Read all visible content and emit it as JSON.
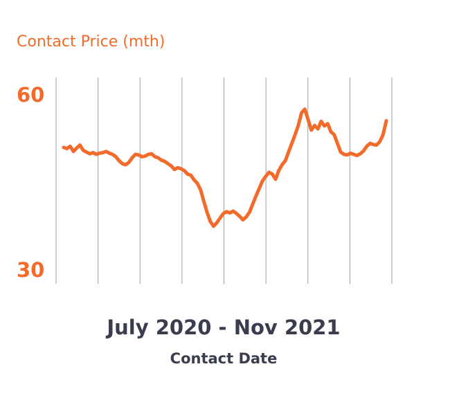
{
  "colors": {
    "accent": "#f26b2a",
    "text_dark": "#3a3d4d",
    "grid": "#9aa0a6"
  },
  "chart_data": {
    "type": "line",
    "title": "Contact Price (mth)",
    "xlabel": "Contact Date",
    "x_range_label": "July 2020 - Nov 2021",
    "ylabel": "",
    "ylim": [
      30,
      60
    ],
    "yticks": [
      30,
      60
    ],
    "grid": "vertical",
    "grid_count": 9,
    "series": [
      {
        "color": "#f26b2a",
        "values": [
          50.8,
          50.6,
          51.0,
          50.1,
          50.7,
          51.2,
          50.3,
          50.0,
          49.7,
          49.9,
          49.6,
          49.8,
          49.9,
          50.1,
          49.8,
          49.6,
          49.2,
          48.5,
          48.0,
          47.8,
          48.2,
          49.0,
          49.6,
          49.5,
          49.2,
          49.3,
          49.6,
          49.7,
          49.2,
          49.0,
          48.6,
          48.4,
          48.0,
          47.6,
          47.0,
          47.3,
          47.1,
          46.8,
          46.2,
          46.0,
          45.2,
          44.6,
          43.5,
          41.5,
          39.6,
          38.0,
          37.2,
          37.8,
          38.6,
          39.4,
          39.7,
          39.5,
          39.8,
          39.4,
          38.9,
          38.3,
          38.8,
          39.6,
          41.0,
          42.4,
          43.7,
          45.0,
          45.8,
          46.5,
          46.2,
          45.3,
          46.8,
          47.8,
          48.5,
          50.0,
          51.5,
          53.0,
          54.6,
          56.8,
          57.4,
          55.6,
          53.8,
          54.6,
          54.0,
          55.3,
          54.5,
          54.9,
          53.5,
          53.0,
          51.5,
          50.0,
          49.6,
          49.5,
          49.8,
          49.6,
          49.4,
          49.7,
          50.2,
          51.0,
          51.5,
          51.3,
          51.2,
          51.8,
          53.0,
          55.4
        ]
      }
    ]
  }
}
